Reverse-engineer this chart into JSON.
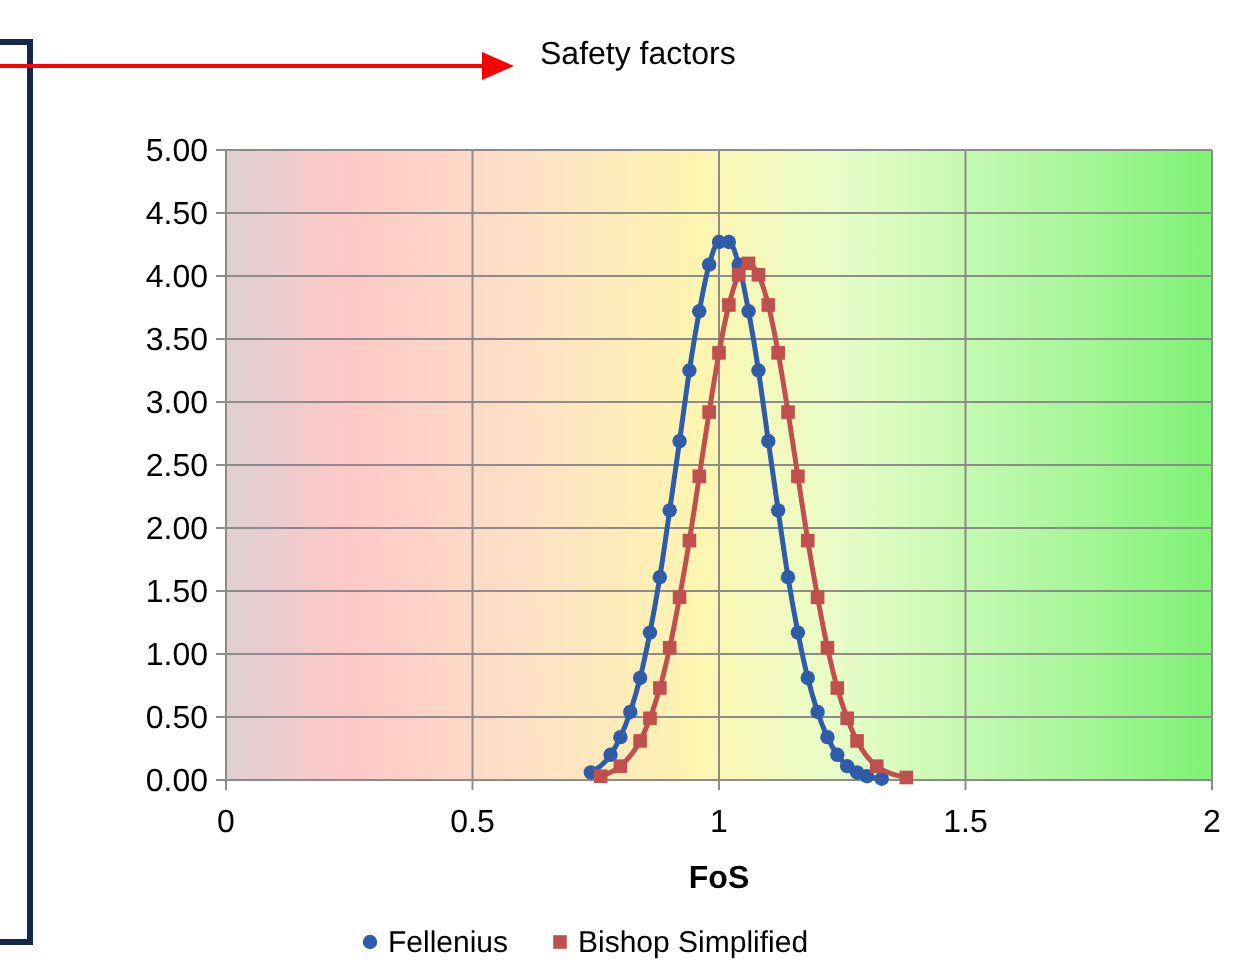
{
  "chart_data": {
    "type": "line",
    "annotations": [
      "Safety factors"
    ],
    "xlabel": "FoS",
    "xlim": [
      0,
      2
    ],
    "xticks": [
      0,
      0.5,
      1,
      1.5,
      2
    ],
    "ylim": [
      0,
      5
    ],
    "yticks": [
      {
        "value": 0,
        "label": "0.00"
      },
      {
        "value": 0.5,
        "label": "0.50"
      },
      {
        "value": 1,
        "label": "1.00"
      },
      {
        "value": 1.5,
        "label": "1.50"
      },
      {
        "value": 2,
        "label": "2.00"
      },
      {
        "value": 2.5,
        "label": "2.50"
      },
      {
        "value": 3,
        "label": "3.00"
      },
      {
        "value": 3.5,
        "label": "3.50"
      },
      {
        "value": 4,
        "label": "4.00"
      },
      {
        "value": 4.5,
        "label": "4.50"
      },
      {
        "value": 5,
        "label": "5.00"
      }
    ],
    "grid": true,
    "legend": "bottom",
    "series": [
      {
        "name": "Fellenius",
        "color": "#2e5ca8",
        "marker": "circle",
        "x": [
          0.74,
          0.78,
          0.8,
          0.82,
          0.84,
          0.86,
          0.88,
          0.9,
          0.92,
          0.94,
          0.96,
          0.98,
          1.0,
          1.02,
          1.04,
          1.06,
          1.08,
          1.1,
          1.12,
          1.14,
          1.16,
          1.18,
          1.2,
          1.22,
          1.24,
          1.26,
          1.28,
          1.3,
          1.33
        ],
        "values": [
          0.06,
          0.2,
          0.34,
          0.54,
          0.81,
          1.17,
          1.61,
          2.14,
          2.69,
          3.25,
          3.72,
          4.09,
          4.27,
          4.27,
          4.09,
          3.72,
          3.25,
          2.69,
          2.14,
          1.61,
          1.17,
          0.81,
          0.54,
          0.34,
          0.2,
          0.11,
          0.06,
          0.03,
          0.01
        ]
      },
      {
        "name": "Bishop Simplified",
        "color": "#c0504d",
        "marker": "square",
        "x": [
          0.76,
          0.8,
          0.84,
          0.86,
          0.88,
          0.9,
          0.92,
          0.94,
          0.96,
          0.98,
          1.0,
          1.02,
          1.04,
          1.06,
          1.08,
          1.1,
          1.12,
          1.14,
          1.16,
          1.18,
          1.2,
          1.22,
          1.24,
          1.26,
          1.28,
          1.32,
          1.38
        ],
        "values": [
          0.03,
          0.11,
          0.31,
          0.49,
          0.73,
          1.05,
          1.45,
          1.9,
          2.41,
          2.92,
          3.39,
          3.77,
          4.01,
          4.1,
          4.01,
          3.77,
          3.39,
          2.92,
          2.41,
          1.9,
          1.45,
          1.05,
          0.73,
          0.49,
          0.31,
          0.11,
          0.02
        ]
      }
    ]
  }
}
